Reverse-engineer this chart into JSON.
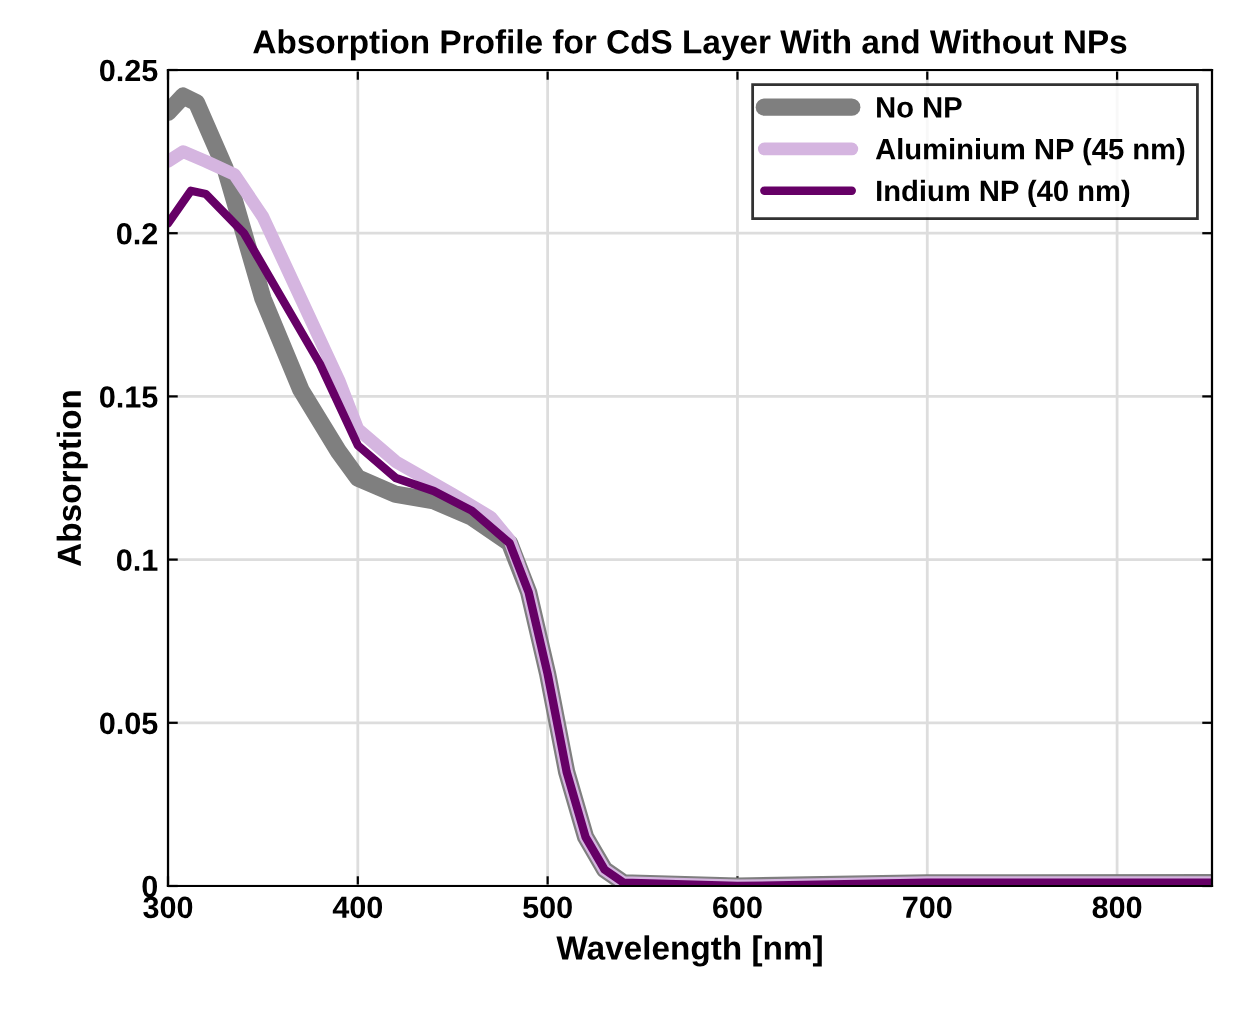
{
  "chart_data": {
    "type": "line",
    "title": "Absorption Profile for CdS Layer With and Without NPs",
    "xlabel": "Wavelength [nm]",
    "ylabel": "Absorption",
    "xlim": [
      300,
      850
    ],
    "ylim": [
      0,
      0.25
    ],
    "xticks": [
      300,
      400,
      500,
      600,
      700,
      800
    ],
    "yticks": [
      0,
      0.05,
      0.1,
      0.15,
      0.2,
      0.25
    ],
    "grid": true,
    "legend": "top right",
    "series": [
      {
        "name": "No NP",
        "color": "#7f7f7f",
        "x": [
          300,
          308,
          315,
          330,
          350,
          370,
          390,
          400,
          420,
          440,
          460,
          480,
          490,
          500,
          510,
          520,
          530,
          540,
          600,
          700,
          850
        ],
        "values": [
          0.237,
          0.242,
          0.24,
          0.22,
          0.18,
          0.152,
          0.133,
          0.125,
          0.12,
          0.118,
          0.113,
          0.105,
          0.09,
          0.065,
          0.035,
          0.015,
          0.005,
          0.001,
          0.0,
          0.001,
          0.001
        ]
      },
      {
        "name": "Aluminium NP (45 nm)",
        "color": "#d5b5e0",
        "x": [
          300,
          308,
          320,
          335,
          350,
          370,
          390,
          400,
          420,
          450,
          470,
          480,
          490,
          500,
          510,
          520,
          530,
          540,
          600,
          700,
          850
        ],
        "values": [
          0.222,
          0.225,
          0.222,
          0.218,
          0.205,
          0.18,
          0.155,
          0.14,
          0.13,
          0.12,
          0.113,
          0.106,
          0.09,
          0.065,
          0.035,
          0.015,
          0.005,
          0.001,
          0.0,
          0.001,
          0.001
        ]
      },
      {
        "name": "Indium NP (40 nm)",
        "color": "#660066",
        "x": [
          300,
          312,
          320,
          340,
          360,
          380,
          400,
          420,
          440,
          460,
          480,
          490,
          500,
          510,
          520,
          530,
          540,
          600,
          700,
          850
        ],
        "values": [
          0.203,
          0.213,
          0.212,
          0.2,
          0.18,
          0.16,
          0.135,
          0.125,
          0.121,
          0.115,
          0.105,
          0.09,
          0.065,
          0.035,
          0.015,
          0.005,
          0.001,
          0.0,
          0.001,
          0.001
        ]
      }
    ]
  }
}
